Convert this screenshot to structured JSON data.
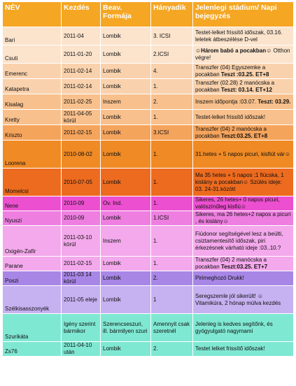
{
  "header": {
    "col1": "NÉV",
    "col2": "Kezdés",
    "col3": "Beav. Formája",
    "col4": "Hányadik",
    "col5": "Jelenlegi stádium/ Napi bejegyzés"
  },
  "rows": [
    {
      "name": "Bari",
      "start": "2011-04",
      "method": "Lombik",
      "nth": "3. ICSI",
      "status": " Testet-lelket frissítő időszak, 03.16. leletek átbeszélése D-vel",
      "status_bold": "",
      "bg": "#fbe3cc"
    },
    {
      "name": "Csuti",
      "start": "2011-01-20",
      "method": "Lombik",
      "nth": "2.ICSI",
      "status": "☺",
      "status_bold": "Három babó a pocakban☺",
      "status2": " Otthon végre!",
      "bg": "#fbe3cc"
    },
    {
      "name": "Emerenc",
      "start": "2011-02-14",
      "method": "Lombik",
      "nth": "4.",
      "status": "Transzfer (04) Egyszemke a pocakban ",
      "status_bold": "Teszt :03.25. ET+8",
      "bg": "#f9d2ad"
    },
    {
      "name": "Katapetra",
      "start": "2011-02-14",
      "method": "Lombik",
      "nth": "1.",
      "status": "Transzfer (02.28) 2 manócska a pocakban ",
      "status_bold": "Teszt: 03.14. ET+12",
      "bg": "#f9d2ad"
    },
    {
      "name": "Kisalag",
      "start": "2011-02-25",
      "method": "Inszem",
      "nth": "2.",
      "status": "Inszem időpontja :03.07. ",
      "status_bold": "Teszt: 03.29.",
      "bg": "#f8c08c"
    },
    {
      "name": "Kretty",
      "start": "2011-04-05 körül",
      "method": "Lombik",
      "nth": "1.",
      "status": "Testet-lelket frissítő időszak!",
      "status_bold": "",
      "bg": "#f8c08c"
    },
    {
      "name": "Kriszto",
      "start": "2011-02-15",
      "method": "Lombik",
      "nth": "3.ICSI",
      "status": "Transzfer (04) 2 manócska a pocakban ",
      "status_bold": "Teszt:03.25. ET+8",
      "bg": "#f5a45c"
    },
    {
      "name": "Loorena",
      "start": "2010-08-02",
      "method": "Lombik",
      "nth": "1.",
      "status": "31.hetes  + 5 napos picuri, kisfiút vár☺",
      "status_bold": "",
      "bg": "#f08a24"
    },
    {
      "name": "Momelcsi",
      "start": "2010-07-05",
      "method": "Lombik",
      "nth": "1.",
      "status": "Ma 35 hetes + 5 napos ;1 fiúcska, 1 kislány a pocakban☺ Szülés ideje: 03. 24-31.között",
      "status_bold": "",
      "bg": "#ed6b1f"
    },
    {
      "name": "Nene",
      "start": "2010-09",
      "method": "Ov. Ind.",
      "nth": "1.",
      "status": "Sikeres, 26 hetes+ 0 napos picuri, valószínűleg kisfiú☺",
      "status_bold": "",
      "bg": "#ec4fd0"
    },
    {
      "name": "Nyuszi",
      "start": "2010-09",
      "method": "Lombik",
      "nth": "1.ICSI",
      "status": "Sikeres, ma 26 hetes+2 napos a picuri , és kislány☺",
      "status_bold": "",
      "bg": "#ee7ee0"
    },
    {
      "name": "Oxigén-Zafír",
      "start": "2011-03-10 körül",
      "method": "Inszem",
      "nth": "1.",
      "status": "Fiúdonor segítségével lesz a beülti, csiztamentesítő időszak, piri érkezésnek várható ideje :03..10.?",
      "status_bold": "",
      "bg": "#f4a9ec"
    },
    {
      "name": "Parane",
      "start": "2011-02-15",
      "method": "Lombik",
      "nth": "1.",
      "status": "Transzfer (04) 2 manócska a pocakban ",
      "status_bold": "Teszt:03.25. ET+7",
      "bg": "#f4a9ec"
    },
    {
      "name": "Poszi",
      "start": "2011-03 14 körül",
      "method": "Lombik",
      "nth": "2.",
      "status": "Pirimeghozó Drukk!",
      "status_bold": "",
      "bg": "#a886e6"
    },
    {
      "name": "Szélkisasszonyék",
      "start": "2011-05 eleje",
      "method": "Lombik",
      "nth": "1",
      "status": "Seregszemle jól sikerült! ☺ Vitamikúra, 2 hónap múlva kezdés",
      "status_bold": "",
      "bg": "#c6b1f1"
    },
    {
      "name": "Szurikáta",
      "start": "Igény szerint bármikor",
      "method": "Szerencseszuri, ill. bármilyen szuri",
      "nth": "Amennyit csak szeretnél",
      "status": "Jelenleg is kedves segítőnk, és gyógyulgató nagymami",
      "status_bold": "",
      "bg": "#7fe8d3"
    },
    {
      "name": "Zs76",
      "start": "2011-04-10 után",
      "method": "Lombik",
      "nth": "2.",
      "status": "Testet lelket frissítő időszak!",
      "status_bold": "",
      "bg": "#7fe8d3"
    }
  ]
}
